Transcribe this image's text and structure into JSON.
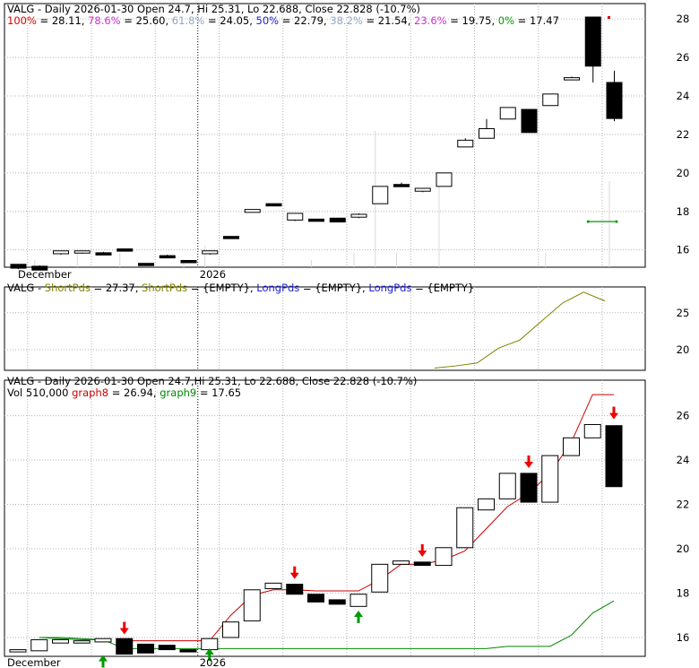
{
  "colors": {
    "up_candle": "#ffffff",
    "down_candle": "#000000",
    "background": "#ffffff",
    "grid": "#b4b4b4",
    "fib_100": "#dd0000",
    "fib_786": "#cc33cc",
    "fib_618": "#8fa8c8",
    "fib_50": "#2222cc",
    "fib_382": "#8fa8c8",
    "fib_236": "#cc33cc",
    "fib_0": "#009900",
    "short_pds": "#808000",
    "long_pds": "#2222cc",
    "graph8": "#cc0000",
    "graph9": "#008800",
    "arrow_down": "#ee0000",
    "arrow_up": "#009900"
  },
  "header_text": "VALG - Daily 2026-01-30 Open 24.7, Hi 25.31, Lo 22.688, Close 22.828 (-10.7%)",
  "fib": {
    "items": [
      {
        "label": "100%",
        "value": "= 28.11,",
        "color_key": "fib_100"
      },
      {
        "label": "78.6%",
        "value": "= 25.60,",
        "color_key": "fib_786"
      },
      {
        "label": "61.8%",
        "value": "= 24.05,",
        "color_key": "fib_618"
      },
      {
        "label": "50%",
        "value": "= 22.79,",
        "color_key": "fib_50"
      },
      {
        "label": "38.2%",
        "value": "= 21.54,",
        "color_key": "fib_382"
      },
      {
        "label": "23.6%",
        "value": "= 19.75,",
        "color_key": "fib_236"
      },
      {
        "label": "0%",
        "value": "= 17.47",
        "color_key": "fib_0"
      }
    ]
  },
  "panel2": {
    "prefix": "VALG -",
    "short_label": "ShortPds",
    "short_value": "= 27.37,",
    "short_label2": "ShortPds",
    "short_value2": "= {EMPTY},",
    "long_label": "LongPds",
    "long_value": "= {EMPTY},",
    "long_label2": "LongPds",
    "long_value2": "= {EMPTY}"
  },
  "panel3": {
    "vol_text": "Vol 510,000",
    "graph8_label": "graph8",
    "graph8_value": "= 26.94,",
    "graph9_label": "graph9",
    "graph9_value": "= 17.65"
  },
  "chart_data": [
    {
      "type": "candlestick",
      "title": "VALG - Daily 2026-01-30 Open 24.7, Hi 25.31, Lo 22.688, Close 22.828 (-10.7%)",
      "x_labels": [
        "December",
        "2026"
      ],
      "x_label_index": [
        1,
        9
      ],
      "ylim": [
        15.1,
        28.8
      ],
      "yticks": [
        16,
        18,
        20,
        22,
        24,
        26,
        28
      ],
      "candles": [
        {
          "o": 15.25,
          "h": 15.25,
          "l": 15.0,
          "c": 15.05
        },
        {
          "o": 15.15,
          "h": 15.2,
          "l": 15.0,
          "c": 14.95
        },
        {
          "o": 15.8,
          "h": 15.9,
          "l": 15.75,
          "c": 15.95
        },
        {
          "o": 15.85,
          "h": 15.95,
          "l": 15.8,
          "c": 15.95
        },
        {
          "o": 15.85,
          "h": 15.9,
          "l": 15.8,
          "c": 15.8
        },
        {
          "o": 16.05,
          "h": 16.05,
          "l": 15.95,
          "c": 16.0
        },
        {
          "o": 15.3,
          "h": 15.3,
          "l": 15.25,
          "c": 15.25
        },
        {
          "o": 15.7,
          "h": 15.75,
          "l": 15.65,
          "c": 15.65
        },
        {
          "o": 15.45,
          "h": 15.45,
          "l": 15.4,
          "c": 15.4
        },
        {
          "o": 15.8,
          "h": 15.95,
          "l": 15.75,
          "c": 15.95
        },
        {
          "o": 16.7,
          "h": 16.7,
          "l": 16.65,
          "c": 16.65
        },
        {
          "o": 17.95,
          "h": 18.1,
          "l": 17.95,
          "c": 18.1
        },
        {
          "o": 18.4,
          "h": 18.4,
          "l": 18.35,
          "c": 18.35
        },
        {
          "o": 17.55,
          "h": 17.9,
          "l": 17.5,
          "c": 17.9
        },
        {
          "o": 17.6,
          "h": 17.6,
          "l": 17.55,
          "c": 17.55
        },
        {
          "o": 17.65,
          "h": 17.65,
          "l": 17.45,
          "c": 17.45
        },
        {
          "o": 17.7,
          "h": 17.9,
          "l": 17.65,
          "c": 17.85
        },
        {
          "o": 18.4,
          "h": 19.3,
          "l": 18.4,
          "c": 19.3
        },
        {
          "o": 19.4,
          "h": 19.5,
          "l": 19.3,
          "c": 19.35
        },
        {
          "o": 19.05,
          "h": 19.2,
          "l": 19.0,
          "c": 19.2
        },
        {
          "o": 19.3,
          "h": 20.0,
          "l": 19.3,
          "c": 20.0
        },
        {
          "o": 21.35,
          "h": 21.8,
          "l": 21.35,
          "c": 21.7
        },
        {
          "o": 21.8,
          "h": 22.8,
          "l": 21.8,
          "c": 22.3
        },
        {
          "o": 22.8,
          "h": 23.4,
          "l": 22.8,
          "c": 23.4
        },
        {
          "o": 23.3,
          "h": 23.3,
          "l": 22.1,
          "c": 22.1
        },
        {
          "o": 23.5,
          "h": 24.1,
          "l": 23.5,
          "c": 24.1
        },
        {
          "o": 24.95,
          "h": 25.0,
          "l": 24.95,
          "c": 24.95
        },
        {
          "o": 28.1,
          "h": 28.1,
          "l": 24.7,
          "c": 25.55
        },
        {
          "o": 24.7,
          "h": 25.31,
          "l": 22.688,
          "c": 22.828
        }
      ],
      "volume_bars": [
        0,
        0.05,
        0,
        0.1,
        0,
        0.1,
        0,
        0,
        0.05,
        0.15,
        0,
        0,
        0,
        0,
        0.05,
        0,
        0.1,
        0.95,
        0.1,
        0,
        0.6,
        0,
        0,
        0,
        0,
        0.1,
        0,
        0,
        0.6
      ],
      "markers": [
        {
          "index": 28,
          "value": 28.1,
          "series": "fib_100"
        },
        {
          "index_from": 27,
          "index_to": 28,
          "value": 17.47,
          "series": "fib_0"
        }
      ]
    },
    {
      "type": "line",
      "title": "VALG - ShortPds = 27.37, ShortPds = {EMPTY}, LongPds = {EMPTY}, LongPds = {EMPTY}",
      "ylim": [
        17.2,
        28.5
      ],
      "yticks": [
        20,
        25
      ],
      "series": [
        {
          "name": "ShortPds",
          "color_key": "short_pds",
          "start_index": 20,
          "values": [
            17.5,
            17.8,
            18.2,
            20.2,
            21.3,
            23.8,
            26.3,
            27.8,
            26.6
          ]
        }
      ]
    },
    {
      "type": "candlestick",
      "title": "VALG - Daily 2026-01-30 Open 24.7,Hi 25.31, Lo 22.688, Close 22.828 (-10.7%)",
      "x_labels": [
        "December",
        "2026"
      ],
      "x_label_index": [
        1,
        9
      ],
      "ylim": [
        15.15,
        27.6
      ],
      "yticks": [
        16,
        18,
        20,
        22,
        24,
        26
      ],
      "candles": [
        {
          "o": 15.35,
          "h": 15.45,
          "l": 15.35,
          "c": 15.45
        },
        {
          "o": 15.4,
          "h": 15.9,
          "l": 15.4,
          "c": 15.9
        },
        {
          "o": 15.75,
          "h": 15.95,
          "l": 15.75,
          "c": 15.9
        },
        {
          "o": 15.75,
          "h": 15.85,
          "l": 15.75,
          "c": 15.85
        },
        {
          "o": 15.8,
          "h": 15.95,
          "l": 15.8,
          "c": 15.95
        },
        {
          "o": 15.95,
          "h": 15.95,
          "l": 15.25,
          "c": 15.25
        },
        {
          "o": 15.7,
          "h": 15.7,
          "l": 15.3,
          "c": 15.3
        },
        {
          "o": 15.65,
          "h": 15.65,
          "l": 15.45,
          "c": 15.45
        },
        {
          "o": 15.45,
          "h": 15.45,
          "l": 15.35,
          "c": 15.35
        },
        {
          "o": 15.45,
          "h": 15.95,
          "l": 15.45,
          "c": 15.95
        },
        {
          "o": 16.0,
          "h": 16.7,
          "l": 16.0,
          "c": 16.7
        },
        {
          "o": 16.75,
          "h": 18.15,
          "l": 16.75,
          "c": 18.15
        },
        {
          "o": 18.2,
          "h": 18.45,
          "l": 18.2,
          "c": 18.45
        },
        {
          "o": 18.4,
          "h": 18.4,
          "l": 17.95,
          "c": 17.95
        },
        {
          "o": 17.95,
          "h": 17.95,
          "l": 17.6,
          "c": 17.6
        },
        {
          "o": 17.7,
          "h": 17.7,
          "l": 17.5,
          "c": 17.5
        },
        {
          "o": 17.4,
          "h": 17.95,
          "l": 17.4,
          "c": 17.95
        },
        {
          "o": 18.05,
          "h": 19.3,
          "l": 18.05,
          "c": 19.3
        },
        {
          "o": 19.3,
          "h": 19.45,
          "l": 19.3,
          "c": 19.45
        },
        {
          "o": 19.4,
          "h": 19.4,
          "l": 19.25,
          "c": 19.25
        },
        {
          "o": 19.25,
          "h": 20.05,
          "l": 19.25,
          "c": 20.05
        },
        {
          "o": 20.05,
          "h": 21.85,
          "l": 20.05,
          "c": 21.85
        },
        {
          "o": 21.75,
          "h": 22.25,
          "l": 21.75,
          "c": 22.25
        },
        {
          "o": 22.25,
          "h": 23.4,
          "l": 22.25,
          "c": 23.4
        },
        {
          "o": 23.4,
          "h": 23.4,
          "l": 22.1,
          "c": 22.1
        },
        {
          "o": 22.1,
          "h": 24.2,
          "l": 22.1,
          "c": 24.2
        },
        {
          "o": 24.2,
          "h": 25.0,
          "l": 24.2,
          "c": 25.0
        },
        {
          "o": 25.0,
          "h": 25.6,
          "l": 25.0,
          "c": 25.6
        },
        {
          "o": 25.55,
          "h": 25.55,
          "l": 22.8,
          "c": 22.8
        }
      ],
      "graph8": [
        null,
        null,
        null,
        null,
        null,
        15.85,
        15.85,
        15.85,
        15.85,
        15.85,
        17.0,
        17.9,
        18.15,
        18.15,
        18.1,
        18.1,
        18.1,
        18.6,
        19.3,
        19.3,
        19.5,
        19.9,
        20.9,
        21.9,
        22.5,
        23.4,
        24.8,
        26.95,
        26.95
      ],
      "graph8_pre": [
        null,
        16.0,
        15.95,
        15.9,
        15.9
      ],
      "graph9": [
        null,
        16.0,
        16.0,
        15.95,
        15.9,
        15.5,
        15.5,
        15.5,
        15.5,
        15.5,
        15.5,
        15.5,
        15.5,
        15.5,
        15.5,
        15.5,
        15.5,
        15.5,
        15.5,
        15.5,
        15.5,
        15.5,
        15.5,
        15.6,
        15.6,
        15.6,
        16.1,
        17.1,
        17.65
      ],
      "arrows_down": [
        {
          "index": 5,
          "value": 16.3
        },
        {
          "index": 13,
          "value": 18.8
        },
        {
          "index": 19,
          "value": 19.8
        },
        {
          "index": 24,
          "value": 23.8
        },
        {
          "index": 28,
          "value": 26.0
        }
      ],
      "arrows_up": [
        {
          "index": 4,
          "value": 15.05
        },
        {
          "index": 9,
          "value": 15.35
        },
        {
          "index": 16,
          "value": 17.05
        }
      ]
    }
  ]
}
